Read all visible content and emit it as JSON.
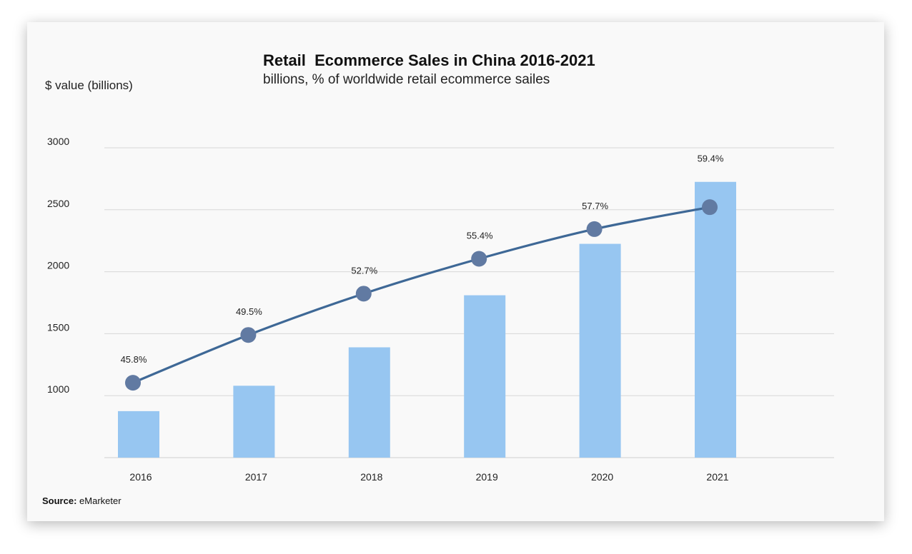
{
  "chart_data": {
    "type": "bar",
    "title": "Retail  Ecommerce Sales in China 2016-2021",
    "subtitle": "billions, % of worldwide retail ecommerce sailes",
    "ylabel": "$ value (billions)",
    "xlabel": "",
    "categories": [
      "2016",
      "2017",
      "2018",
      "2019",
      "2020",
      "2021"
    ],
    "yticks": [
      3000,
      2500,
      2000,
      1500,
      1000
    ],
    "ylim": [
      500,
      3000
    ],
    "grid": true,
    "series": [
      {
        "type": "bar",
        "values": [
          875,
          1080,
          1390,
          1810,
          2225,
          2725
        ],
        "color": "#97c6f1"
      },
      {
        "type": "line",
        "values": [
          45.8,
          49.5,
          52.7,
          55.4,
          57.7,
          59.4
        ],
        "labels": [
          "45.8%",
          "49.5%",
          "52.7%",
          "55.4%",
          "57.7%",
          "59.4%"
        ],
        "color": "#3e6896",
        "marker_color": "#617aa2"
      }
    ]
  },
  "source": {
    "label": "Source:",
    "value": "eMarketer"
  }
}
